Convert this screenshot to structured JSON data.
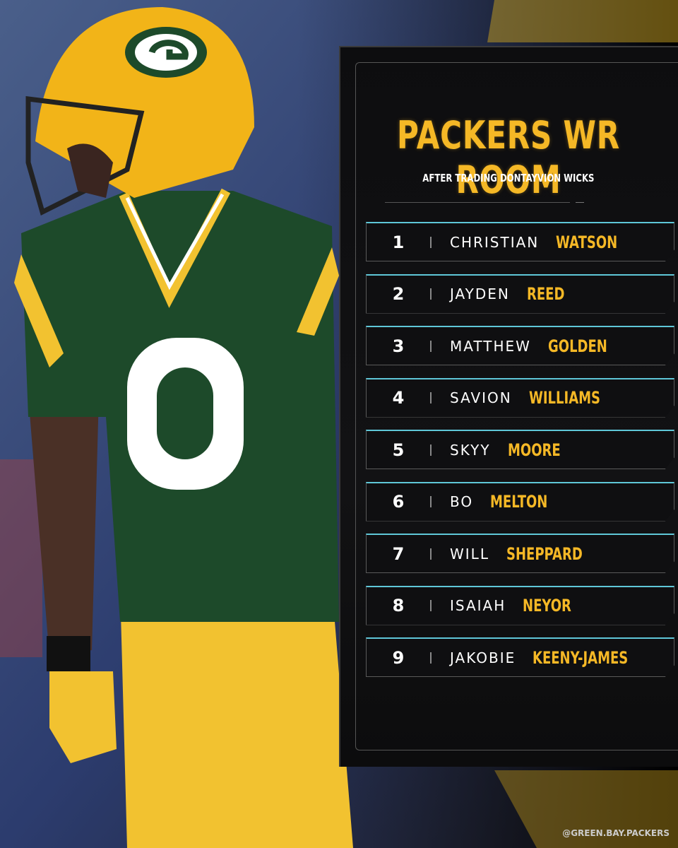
{
  "header": {
    "title": "PACKERS WR ROOM",
    "subtitle": "AFTER TRADING DONTAYVION WICKS"
  },
  "list": [
    {
      "rank": 1,
      "first": "CHRISTIAN",
      "last": "WATSON"
    },
    {
      "rank": 2,
      "first": "JAYDEN",
      "last": "REED"
    },
    {
      "rank": 3,
      "first": "MATTHEW",
      "last": "GOLDEN"
    },
    {
      "rank": 4,
      "first": "SAVION",
      "last": "WILLIAMS"
    },
    {
      "rank": 5,
      "first": "SKYY",
      "last": "MOORE"
    },
    {
      "rank": 6,
      "first": "BO",
      "last": "MELTON"
    },
    {
      "rank": 7,
      "first": "WILL",
      "last": "SHEPPARD"
    },
    {
      "rank": 8,
      "first": "ISAIAH",
      "last": "NEYOR"
    },
    {
      "rank": 9,
      "first": "JAKOBIE",
      "last": "KEENY-JAMES"
    }
  ],
  "handle": "@GREEN.BAY.PACKERS"
}
